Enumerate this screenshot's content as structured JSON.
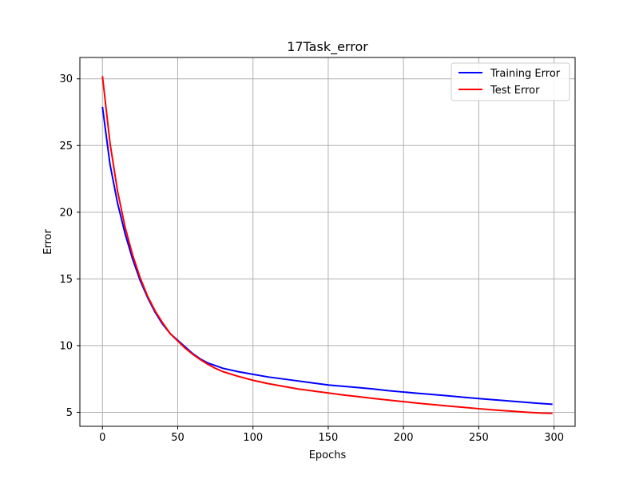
{
  "chart_data": {
    "type": "line",
    "title": "17Task_error",
    "xlabel": "Epochs",
    "ylabel": "Error",
    "xlim": [
      -15.0,
      314.0
    ],
    "ylim": [
      3.95,
      31.6
    ],
    "xticks": [
      0,
      50,
      100,
      150,
      200,
      250,
      300
    ],
    "yticks": [
      5,
      10,
      15,
      20,
      25,
      30
    ],
    "grid": true,
    "legend_position": "top-right",
    "series": [
      {
        "name": "Training Error",
        "color": "#0000ff",
        "x": [
          0,
          5,
          10,
          15,
          20,
          25,
          30,
          35,
          40,
          45,
          50,
          55,
          60,
          65,
          70,
          75,
          80,
          90,
          100,
          110,
          120,
          130,
          140,
          150,
          160,
          170,
          180,
          190,
          200,
          210,
          220,
          230,
          240,
          250,
          260,
          270,
          280,
          290,
          299
        ],
        "y": [
          27.9,
          23.6,
          20.7,
          18.4,
          16.5,
          14.9,
          13.6,
          12.5,
          11.6,
          10.9,
          10.4,
          9.9,
          9.4,
          9.0,
          8.7,
          8.5,
          8.3,
          8.05,
          7.85,
          7.65,
          7.5,
          7.35,
          7.2,
          7.05,
          6.95,
          6.85,
          6.75,
          6.62,
          6.52,
          6.42,
          6.33,
          6.23,
          6.13,
          6.03,
          5.94,
          5.85,
          5.76,
          5.67,
          5.6
        ]
      },
      {
        "name": "Test Error",
        "color": "#ff0000",
        "x": [
          0,
          5,
          10,
          15,
          20,
          25,
          30,
          35,
          40,
          45,
          50,
          55,
          60,
          65,
          70,
          75,
          80,
          90,
          100,
          110,
          120,
          130,
          140,
          150,
          160,
          170,
          180,
          190,
          200,
          210,
          220,
          230,
          240,
          250,
          260,
          270,
          280,
          290,
          299
        ],
        "y": [
          30.2,
          25.2,
          21.6,
          18.9,
          16.8,
          15.1,
          13.7,
          12.6,
          11.7,
          10.9,
          10.35,
          9.8,
          9.35,
          8.95,
          8.6,
          8.3,
          8.05,
          7.7,
          7.4,
          7.15,
          6.95,
          6.75,
          6.6,
          6.45,
          6.3,
          6.17,
          6.04,
          5.92,
          5.8,
          5.68,
          5.57,
          5.47,
          5.37,
          5.27,
          5.18,
          5.1,
          5.02,
          4.95,
          4.92
        ]
      }
    ]
  }
}
